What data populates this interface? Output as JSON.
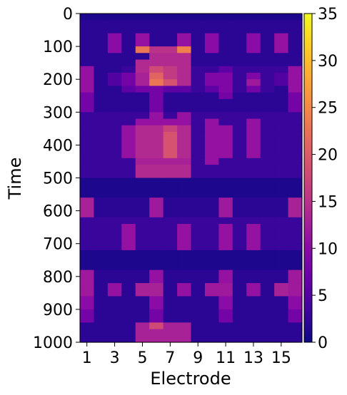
{
  "chart_data": {
    "type": "heatmap",
    "title": "",
    "xlabel": "Electrode",
    "ylabel": "Time",
    "colormap": "plasma",
    "x_tick_labels": [
      "1",
      "3",
      "5",
      "7",
      "9",
      "11",
      "13",
      "15"
    ],
    "x_ticks": [
      1,
      3,
      5,
      7,
      9,
      11,
      13,
      15
    ],
    "y_tick_labels": [
      "0",
      "100",
      "200",
      "300",
      "400",
      "500",
      "600",
      "700",
      "800",
      "900",
      "1000"
    ],
    "y_ticks": [
      0,
      100,
      200,
      300,
      400,
      500,
      600,
      700,
      800,
      900,
      1000
    ],
    "colorbar_tick_labels": [
      "0",
      "5",
      "10",
      "15",
      "20",
      "25",
      "30",
      "35"
    ],
    "colorbar_ticks": [
      0,
      5,
      10,
      15,
      20,
      25,
      30,
      35
    ],
    "clim": [
      0,
      35
    ],
    "electrodes": 16,
    "time_bin": 20,
    "time_range": [
      0,
      1000
    ],
    "row_groups": [
      {
        "from": 0,
        "to": 20,
        "values": [
          1,
          1,
          1,
          1,
          1,
          1,
          1,
          1,
          1,
          1,
          1,
          1,
          1,
          1,
          1,
          1
        ]
      },
      {
        "from": 20,
        "to": 60,
        "values": [
          2,
          2,
          2,
          2,
          2,
          2,
          2,
          2,
          2,
          2,
          2,
          2,
          2,
          2,
          2,
          2
        ]
      },
      {
        "from": 60,
        "to": 100,
        "values": [
          2,
          2,
          10,
          2,
          11,
          2,
          2,
          11,
          2,
          10,
          2,
          2,
          10,
          2,
          11,
          2
        ]
      },
      {
        "from": 100,
        "to": 120,
        "values": [
          2,
          2,
          10,
          2,
          23,
          15,
          15,
          24,
          2,
          10,
          2,
          2,
          10,
          2,
          11,
          2
        ]
      },
      {
        "from": 120,
        "to": 140,
        "values": [
          2,
          2,
          2,
          2,
          2,
          14,
          14,
          14,
          2,
          2,
          2,
          2,
          2,
          2,
          2,
          2
        ]
      },
      {
        "from": 140,
        "to": 160,
        "values": [
          2,
          2,
          2,
          2,
          14,
          14,
          14,
          14,
          2,
          2,
          2,
          2,
          2,
          2,
          2,
          2
        ]
      },
      {
        "from": 160,
        "to": 180,
        "values": [
          11,
          2,
          2,
          3,
          14,
          18,
          16,
          14,
          3,
          3,
          6,
          3,
          3,
          3,
          3,
          11
        ]
      },
      {
        "from": 180,
        "to": 200,
        "values": [
          11,
          2,
          5,
          8,
          13,
          21,
          16,
          14,
          3,
          9,
          9,
          3,
          9,
          3,
          5,
          11
        ]
      },
      {
        "from": 200,
        "to": 220,
        "values": [
          11,
          2,
          5,
          8,
          13,
          23,
          19,
          14,
          3,
          9,
          9,
          3,
          12,
          3,
          5,
          11
        ]
      },
      {
        "from": 220,
        "to": 240,
        "values": [
          11,
          2,
          2,
          6,
          8,
          8,
          6,
          6,
          3,
          6,
          9,
          3,
          8,
          3,
          2,
          11
        ]
      },
      {
        "from": 240,
        "to": 260,
        "values": [
          8,
          2,
          2,
          2,
          2,
          8,
          2,
          2,
          2,
          2,
          8,
          2,
          2,
          2,
          2,
          8
        ]
      },
      {
        "from": 260,
        "to": 300,
        "values": [
          8,
          2,
          2,
          2,
          2,
          8,
          2,
          2,
          2,
          2,
          2,
          2,
          2,
          2,
          2,
          8
        ]
      },
      {
        "from": 300,
        "to": 320,
        "values": [
          3,
          3,
          3,
          3,
          3,
          11,
          3,
          11,
          3,
          3,
          3,
          3,
          3,
          3,
          3,
          3
        ]
      },
      {
        "from": 320,
        "to": 340,
        "values": [
          3,
          3,
          3,
          3,
          11,
          11,
          11,
          11,
          3,
          11,
          3,
          3,
          11,
          3,
          3,
          3
        ]
      },
      {
        "from": 340,
        "to": 360,
        "values": [
          3,
          3,
          3,
          11,
          14,
          14,
          17,
          14,
          3,
          11,
          11,
          3,
          11,
          3,
          3,
          3
        ]
      },
      {
        "from": 360,
        "to": 440,
        "values": [
          3,
          3,
          3,
          11,
          14,
          14,
          19,
          14,
          3,
          11,
          11,
          3,
          11,
          3,
          3,
          3
        ]
      },
      {
        "from": 440,
        "to": 460,
        "values": [
          3,
          3,
          3,
          3,
          13,
          13,
          13,
          13,
          3,
          11,
          3,
          3,
          3,
          3,
          3,
          3
        ]
      },
      {
        "from": 460,
        "to": 500,
        "values": [
          3,
          3,
          3,
          3,
          14,
          14,
          14,
          14,
          3,
          3,
          3,
          3,
          3,
          3,
          3,
          3
        ]
      },
      {
        "from": 500,
        "to": 560,
        "values": [
          1,
          1,
          1,
          1,
          1,
          1,
          1,
          1,
          1,
          1,
          1,
          1,
          1,
          1,
          1,
          1
        ]
      },
      {
        "from": 560,
        "to": 620,
        "values": [
          13,
          2,
          2,
          2,
          2,
          12,
          2,
          2,
          2,
          2,
          12,
          2,
          2,
          2,
          2,
          13
        ]
      },
      {
        "from": 620,
        "to": 640,
        "values": [
          3,
          3,
          3,
          3,
          3,
          3,
          3,
          3,
          3,
          3,
          3,
          3,
          3,
          3,
          3,
          3
        ]
      },
      {
        "from": 640,
        "to": 700,
        "values": [
          3,
          3,
          3,
          11,
          3,
          3,
          3,
          11,
          3,
          3,
          11,
          3,
          11,
          3,
          3,
          3
        ]
      },
      {
        "from": 700,
        "to": 720,
        "values": [
          3,
          3,
          3,
          11,
          3,
          3,
          3,
          11,
          3,
          3,
          11,
          3,
          11,
          3,
          3,
          3
        ]
      },
      {
        "from": 720,
        "to": 780,
        "values": [
          1,
          1,
          1,
          1,
          1,
          1,
          1,
          1,
          1,
          1,
          1,
          1,
          1,
          1,
          1,
          1
        ]
      },
      {
        "from": 780,
        "to": 820,
        "values": [
          12,
          2,
          2,
          2,
          2,
          11,
          2,
          2,
          2,
          2,
          11,
          2,
          2,
          2,
          2,
          12
        ]
      },
      {
        "from": 820,
        "to": 860,
        "values": [
          12,
          2,
          11,
          2,
          13,
          13,
          2,
          11,
          2,
          12,
          12,
          2,
          11,
          2,
          13,
          12
        ]
      },
      {
        "from": 860,
        "to": 900,
        "values": [
          10,
          2,
          2,
          2,
          2,
          10,
          2,
          2,
          2,
          2,
          10,
          2,
          2,
          2,
          2,
          10
        ]
      },
      {
        "from": 900,
        "to": 940,
        "values": [
          8,
          2,
          2,
          2,
          2,
          8,
          2,
          2,
          2,
          2,
          8,
          2,
          2,
          2,
          2,
          8
        ]
      },
      {
        "from": 940,
        "to": 960,
        "values": [
          2,
          2,
          2,
          2,
          13,
          18,
          13,
          13,
          2,
          2,
          2,
          2,
          2,
          2,
          2,
          2
        ]
      },
      {
        "from": 960,
        "to": 1000,
        "values": [
          2,
          2,
          2,
          2,
          13,
          13,
          13,
          13,
          2,
          2,
          2,
          2,
          2,
          2,
          2,
          2
        ]
      }
    ]
  }
}
